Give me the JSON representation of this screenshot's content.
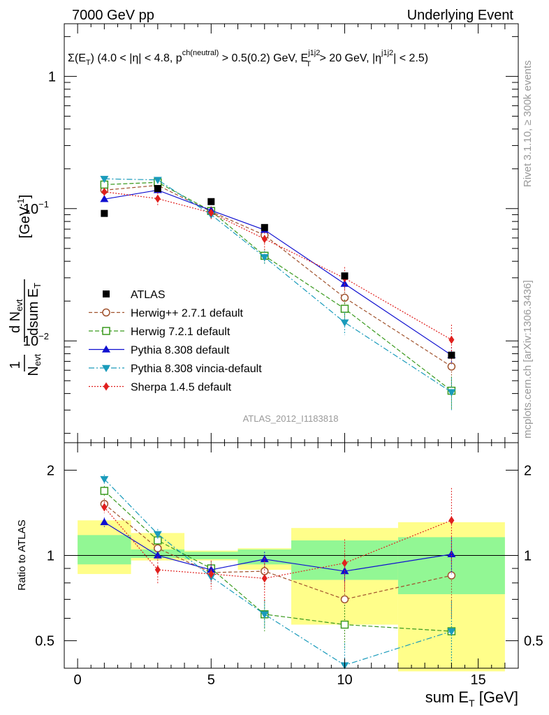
{
  "header": {
    "left": "7000 GeV pp",
    "right": "Underlying Event"
  },
  "side_labels": {
    "rivet": "Rivet 3.1.10, ≥ 300k events",
    "mcplots": "mcplots.cern.ch [arXiv:1306.3436]"
  },
  "chart_data": {
    "type": "scatter",
    "title": "Σ(E_T) (4.0 < |η| < 4.8, p^ch(neutral) > 0.5(0.2) GeV, E_T^j1j2 > 20 GeV, |η^j1j2| < 2.5)",
    "analysis_id": "ATLAS_2012_I1183818",
    "xlabel": "sum E_T [GeV]",
    "ylabel": "1/N_evt dN_evt/dsum E_T [GeV^-1]",
    "ratio_ylabel": "Ratio to ATLAS",
    "x_ticks": [
      "0",
      "5",
      "10",
      "15"
    ],
    "y_ticks_main": [
      "1",
      "10^-1",
      "10^-2"
    ],
    "y_ticks_ratio": [
      "2",
      "1",
      "0.5"
    ],
    "xlim": [
      -0.5,
      16.5
    ],
    "ylim_main": [
      0.0017,
      2.5
    ],
    "ylim_ratio": [
      0.4,
      2.5
    ],
    "log_y": true,
    "bins": [
      [
        0,
        2
      ],
      [
        2,
        4
      ],
      [
        4,
        6
      ],
      [
        6,
        8
      ],
      [
        8,
        12
      ],
      [
        12,
        16
      ]
    ],
    "x": [
      1,
      3,
      5,
      7,
      10,
      14
    ],
    "data": {
      "name": "ATLAS",
      "values": [
        0.092,
        0.142,
        0.113,
        0.072,
        0.031,
        0.0078
      ]
    },
    "band_green": [
      [
        0.93,
        1.18
      ],
      [
        0.98,
        1.05
      ],
      [
        0.97,
        1.03
      ],
      [
        0.93,
        1.05
      ],
      [
        0.82,
        1.13
      ],
      [
        0.73,
        1.16
      ]
    ],
    "band_yellow": [
      [
        0.86,
        1.33
      ],
      [
        0.96,
        1.2
      ],
      [
        0.96,
        1.04
      ],
      [
        0.89,
        1.06
      ],
      [
        0.57,
        1.25
      ],
      [
        0.39,
        1.31
      ]
    ],
    "series": [
      {
        "name": "Herwig++ 2.7.1 default",
        "color": "#a0522d",
        "dash": "5,3",
        "marker": "open-circle",
        "values": [
          0.138,
          0.15,
          0.095,
          0.063,
          0.0212,
          0.0064
        ],
        "ratio": [
          1.52,
          1.06,
          0.87,
          0.88,
          0.7,
          0.85
        ],
        "ratio_err": [
          0.07,
          0.04,
          0.05,
          0.12,
          0.2,
          0.25
        ]
      },
      {
        "name": "Herwig 7.2.1 default",
        "color": "#3a9a1e",
        "dash": "6,3",
        "marker": "open-square",
        "values": [
          0.152,
          0.158,
          0.096,
          0.044,
          0.0175,
          0.0042
        ],
        "ratio": [
          1.69,
          1.13,
          0.9,
          0.62,
          0.57,
          0.54
        ],
        "ratio_err": [
          0.07,
          0.04,
          0.05,
          0.08,
          0.1,
          0.15
        ]
      },
      {
        "name": "Pythia 8.308 default",
        "color": "#1010d0",
        "dash": "",
        "marker": "triangle-up",
        "values": [
          0.118,
          0.138,
          0.097,
          0.069,
          0.027,
          0.0078
        ],
        "ratio": [
          1.31,
          1.0,
          0.89,
          0.97,
          0.88,
          1.01
        ],
        "ratio_err": [
          0.05,
          0.03,
          0.04,
          0.06,
          0.08,
          0.15
        ]
      },
      {
        "name": "Pythia 8.308 vincia-default",
        "color": "#1a9bbb",
        "dash": "8,3,2,3",
        "marker": "triangle-down",
        "values": [
          0.168,
          0.165,
          0.09,
          0.043,
          0.0138,
          0.0041
        ],
        "ratio": [
          1.86,
          1.19,
          0.84,
          0.62,
          0.41,
          0.54
        ],
        "ratio_err": [
          0.07,
          0.05,
          0.05,
          0.07,
          0.08,
          0.15
        ]
      },
      {
        "name": "Sherpa 1.4.5 default",
        "color": "#e0201e",
        "dash": "2,2",
        "marker": "diamond",
        "values": [
          0.134,
          0.119,
          0.093,
          0.059,
          0.0298,
          0.0102
        ],
        "ratio": [
          1.48,
          0.89,
          0.86,
          0.83,
          0.94,
          1.33
        ],
        "ratio_err": [
          0.07,
          0.1,
          0.1,
          0.15,
          0.2,
          0.4
        ]
      }
    ],
    "legend_position": "middle-left"
  }
}
